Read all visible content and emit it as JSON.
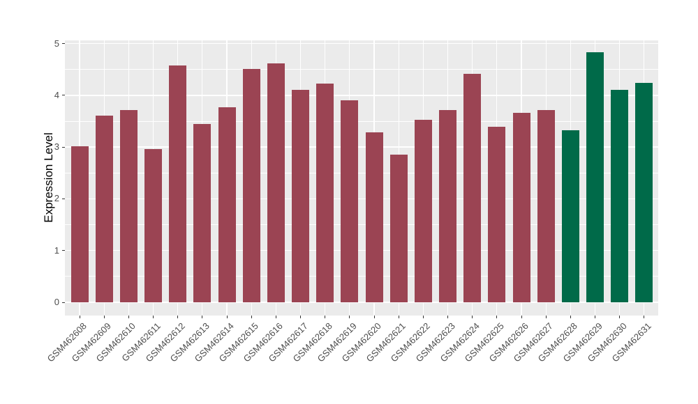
{
  "chart_data": {
    "type": "bar",
    "title": "",
    "xlabel": "",
    "ylabel": "Expression Level",
    "categories": [
      "GSM462608",
      "GSM462609",
      "GSM462610",
      "GSM462611",
      "GSM462612",
      "GSM462613",
      "GSM462614",
      "GSM462615",
      "GSM462616",
      "GSM462617",
      "GSM462618",
      "GSM462619",
      "GSM462620",
      "GSM462621",
      "GSM462622",
      "GSM462623",
      "GSM462624",
      "GSM462625",
      "GSM462626",
      "GSM462627",
      "GSM462628",
      "GSM462629",
      "GSM462630",
      "GSM462631"
    ],
    "values": [
      3.01,
      3.61,
      3.72,
      2.96,
      4.58,
      3.45,
      3.77,
      4.51,
      4.62,
      4.1,
      4.23,
      3.9,
      3.28,
      2.85,
      3.53,
      3.71,
      4.41,
      3.39,
      3.66,
      3.72,
      3.33,
      4.83,
      4.11,
      4.24
    ],
    "highlight_categories": [
      "GSM462628",
      "GSM462629",
      "GSM462630",
      "GSM462631"
    ],
    "y_ticks": [
      0,
      1,
      2,
      3,
      4,
      5
    ],
    "y_minor_ticks": [
      0.5,
      1.5,
      2.5,
      3.5,
      4.5
    ],
    "ylim": [
      -0.25,
      5.06
    ],
    "grid": true,
    "legend_position": "none",
    "colors": {
      "bar_default": "#9B4453",
      "bar_highlight": "#006A49",
      "panel_bg": "#EBEBEB",
      "grid_major": "#FFFFFF",
      "grid_minor": "#FFFFFF",
      "tick_label": "#4D4D4D",
      "tick_mark": "#333333",
      "axis_title": "#000000",
      "figure_bg": "#FFFFFF"
    }
  }
}
